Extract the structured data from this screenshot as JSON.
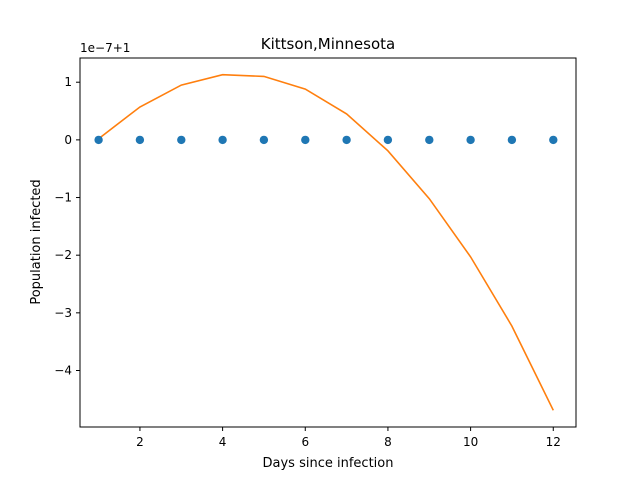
{
  "chart_data": {
    "type": "line",
    "title": "Kittson,Minnesota",
    "xlabel": "Days since infection",
    "ylabel": "Population infected",
    "offset_label": "1e−7+1",
    "xlim": [
      0.55,
      12.55
    ],
    "ylim": [
      -4.98,
      1.42
    ],
    "x_ticks": [
      2,
      4,
      6,
      8,
      10,
      12
    ],
    "x_tick_labels": [
      "2",
      "4",
      "6",
      "8",
      "10",
      "12"
    ],
    "y_ticks": [
      1,
      0,
      -1,
      -2,
      -3,
      -4
    ],
    "y_tick_labels": [
      "1",
      "0",
      "−1",
      "−2",
      "−3",
      "−4"
    ],
    "grid": false,
    "series": [
      {
        "kind": "scatter",
        "color": "#1f77b4",
        "x": [
          1,
          2,
          3,
          4,
          5,
          6,
          7,
          8,
          9,
          10,
          11,
          12
        ],
        "y": [
          0,
          0,
          0,
          0,
          0,
          0,
          0,
          0,
          0,
          0,
          0,
          0
        ]
      },
      {
        "kind": "line",
        "color": "#ff7f0e",
        "x": [
          1,
          2,
          3,
          4,
          5,
          6,
          7,
          8,
          9,
          10,
          11,
          12
        ],
        "y": [
          0.02,
          0.57,
          0.95,
          1.13,
          1.1,
          0.88,
          0.45,
          -0.19,
          -1.02,
          -2.03,
          -3.23,
          -4.69
        ]
      }
    ]
  }
}
